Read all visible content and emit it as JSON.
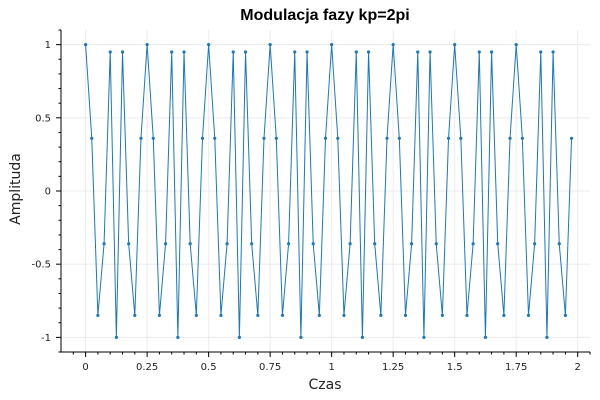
{
  "chart_data": {
    "type": "line",
    "title": "Modulacja fazy kp=2pi",
    "xlabel": "Czas",
    "ylabel": "Amplituda",
    "xlim": [
      -0.1,
      2.05
    ],
    "ylim": [
      -1.1,
      1.1
    ],
    "xticks": [
      0,
      0.25,
      0.5,
      0.75,
      1,
      1.25,
      1.5,
      1.75,
      2
    ],
    "xtick_labels": [
      "0",
      "0.25",
      "0.5",
      "0.75",
      "1",
      "1.25",
      "1.5",
      "1.75",
      "2"
    ],
    "yticks": [
      -1,
      -0.5,
      0,
      0.5,
      1
    ],
    "ytick_labels": [
      "-1",
      "-0.5",
      "0",
      "0.5",
      "1"
    ],
    "grid": true,
    "legend": false,
    "series": [
      {
        "color": "#1f77b4",
        "marker": "dot",
        "x": [
          0.0,
          0.025,
          0.05,
          0.075,
          0.1,
          0.125,
          0.15,
          0.175,
          0.2,
          0.225,
          0.25,
          0.275,
          0.3,
          0.325,
          0.35,
          0.375,
          0.4,
          0.425,
          0.45,
          0.475,
          0.5,
          0.525,
          0.55,
          0.575,
          0.6,
          0.625,
          0.65,
          0.675,
          0.7,
          0.725,
          0.75,
          0.775,
          0.8,
          0.825,
          0.85,
          0.875,
          0.9,
          0.925,
          0.95,
          0.975,
          1.0,
          1.025,
          1.05,
          1.075,
          1.1,
          1.125,
          1.15,
          1.175,
          1.2,
          1.225,
          1.25,
          1.275,
          1.3,
          1.325,
          1.35,
          1.375,
          1.4,
          1.425,
          1.45,
          1.475,
          1.5,
          1.525,
          1.55,
          1.575,
          1.6,
          1.625,
          1.65,
          1.675,
          1.7,
          1.725,
          1.75,
          1.775,
          1.8,
          1.825,
          1.85,
          1.875,
          1.9,
          1.925,
          1.95,
          1.975
        ],
        "y": [
          1,
          0.36,
          -0.85,
          -0.36,
          0.95,
          -1,
          0.95,
          -0.36,
          -0.85,
          0.36,
          1,
          0.36,
          -0.85,
          -0.36,
          0.95,
          -1,
          0.95,
          -0.36,
          -0.85,
          0.36,
          1,
          0.36,
          -0.85,
          -0.36,
          0.95,
          -1,
          0.95,
          -0.36,
          -0.85,
          0.36,
          1,
          0.36,
          -0.85,
          -0.36,
          0.95,
          -1,
          0.95,
          -0.36,
          -0.85,
          0.36,
          1,
          0.36,
          -0.85,
          -0.36,
          0.95,
          -1,
          0.95,
          -0.36,
          -0.85,
          0.36,
          1,
          0.36,
          -0.85,
          -0.36,
          0.95,
          -1,
          0.95,
          -0.36,
          -0.85,
          0.36,
          1,
          0.36,
          -0.85,
          -0.36,
          0.95,
          -1,
          0.95,
          -0.36,
          -0.85,
          0.36,
          1,
          0.36,
          -0.85,
          -0.36,
          0.95,
          -1,
          0.95,
          -0.36,
          -0.85,
          0.36
        ]
      }
    ]
  }
}
